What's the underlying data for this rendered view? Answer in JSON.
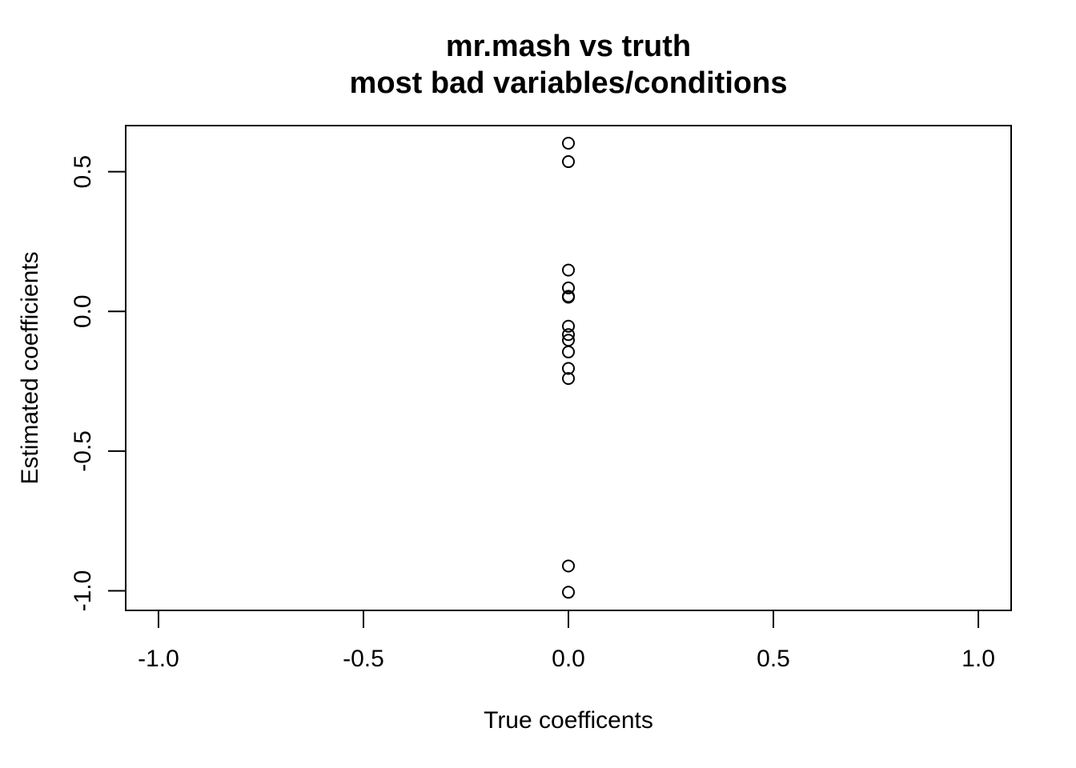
{
  "chart_data": {
    "type": "scatter",
    "title": "mr.mash vs truth",
    "subtitle": "most bad variables/conditions",
    "xlabel": "True coefficents",
    "ylabel": "Estimated coefficients",
    "xlim": [
      -1.08,
      1.08
    ],
    "ylim": [
      -1.07,
      0.665
    ],
    "xticks": [
      -1.0,
      -0.5,
      0.0,
      0.5,
      1.0
    ],
    "xtick_labels": [
      "-1.0",
      "-0.5",
      "0.0",
      "0.5",
      "1.0"
    ],
    "yticks": [
      -1.0,
      -0.5,
      0.0,
      0.5
    ],
    "ytick_labels": [
      "-1.0",
      "-0.5",
      "0.0",
      "0.5"
    ],
    "grid": false,
    "marker": "open-circle",
    "points": [
      {
        "x": 0.0,
        "y": 0.602
      },
      {
        "x": 0.0,
        "y": 0.536
      },
      {
        "x": 0.0,
        "y": 0.148
      },
      {
        "x": 0.0,
        "y": 0.084
      },
      {
        "x": 0.0,
        "y": 0.054
      },
      {
        "x": 0.0,
        "y": 0.051
      },
      {
        "x": 0.0,
        "y": -0.053
      },
      {
        "x": 0.0,
        "y": -0.083
      },
      {
        "x": 0.0,
        "y": -0.103
      },
      {
        "x": 0.0,
        "y": -0.145
      },
      {
        "x": 0.0,
        "y": -0.204
      },
      {
        "x": 0.0,
        "y": -0.24
      },
      {
        "x": 0.0,
        "y": -0.911
      },
      {
        "x": 0.0,
        "y": -1.005
      }
    ]
  }
}
